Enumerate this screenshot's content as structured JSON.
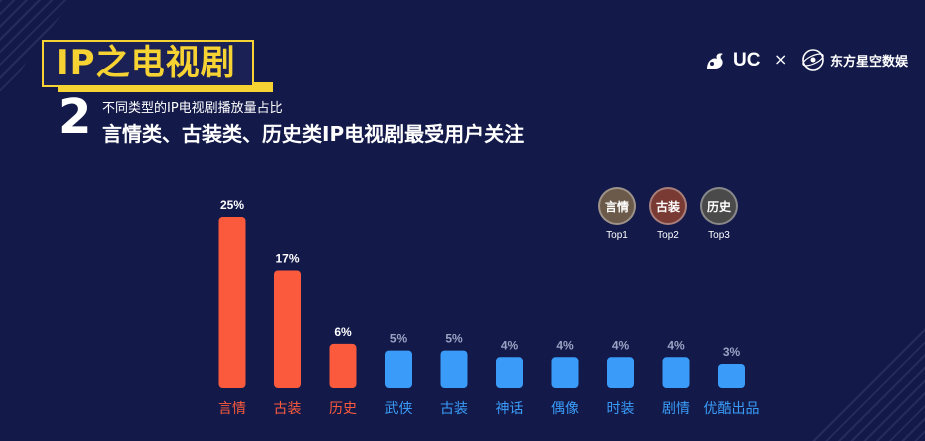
{
  "header": {
    "title": "IP之电视剧",
    "number": "2",
    "subtitle": "不同类型的IP电视剧播放量占比",
    "headline": "言情类、古装类、历史类IP电视剧最受用户关注"
  },
  "logos": {
    "uc": "UC",
    "times": "×",
    "partner": "东方星空数娱"
  },
  "tops": [
    {
      "name": "言情",
      "rank": "Top1",
      "color": "#6b5a4a"
    },
    {
      "name": "古装",
      "rank": "Top2",
      "color": "#7a3a34"
    },
    {
      "name": "历史",
      "rank": "Top3",
      "color": "#4a4a4a"
    }
  ],
  "colors": {
    "highlight": "#fb5a3c",
    "normal": "#3a9cf8",
    "highlight_value_text": "#ffffff",
    "normal_value_text": "#9aa3c4"
  },
  "chart_data": {
    "type": "bar",
    "categories": [
      "言情",
      "古装",
      "历史",
      "武侠",
      "古装",
      "神话",
      "偶像",
      "时装",
      "剧情",
      "优酷出品"
    ],
    "values": [
      25,
      17,
      6,
      5,
      5,
      4,
      4,
      4,
      4,
      3
    ],
    "value_labels": [
      "25%",
      "17%",
      "6%",
      "5%",
      "5%",
      "4%",
      "4%",
      "4%",
      "4%",
      "3%"
    ],
    "highlighted": [
      true,
      true,
      true,
      false,
      false,
      false,
      false,
      false,
      false,
      false
    ],
    "unit": "%",
    "ylim": [
      0,
      25
    ],
    "grid": false,
    "legend": "none"
  }
}
